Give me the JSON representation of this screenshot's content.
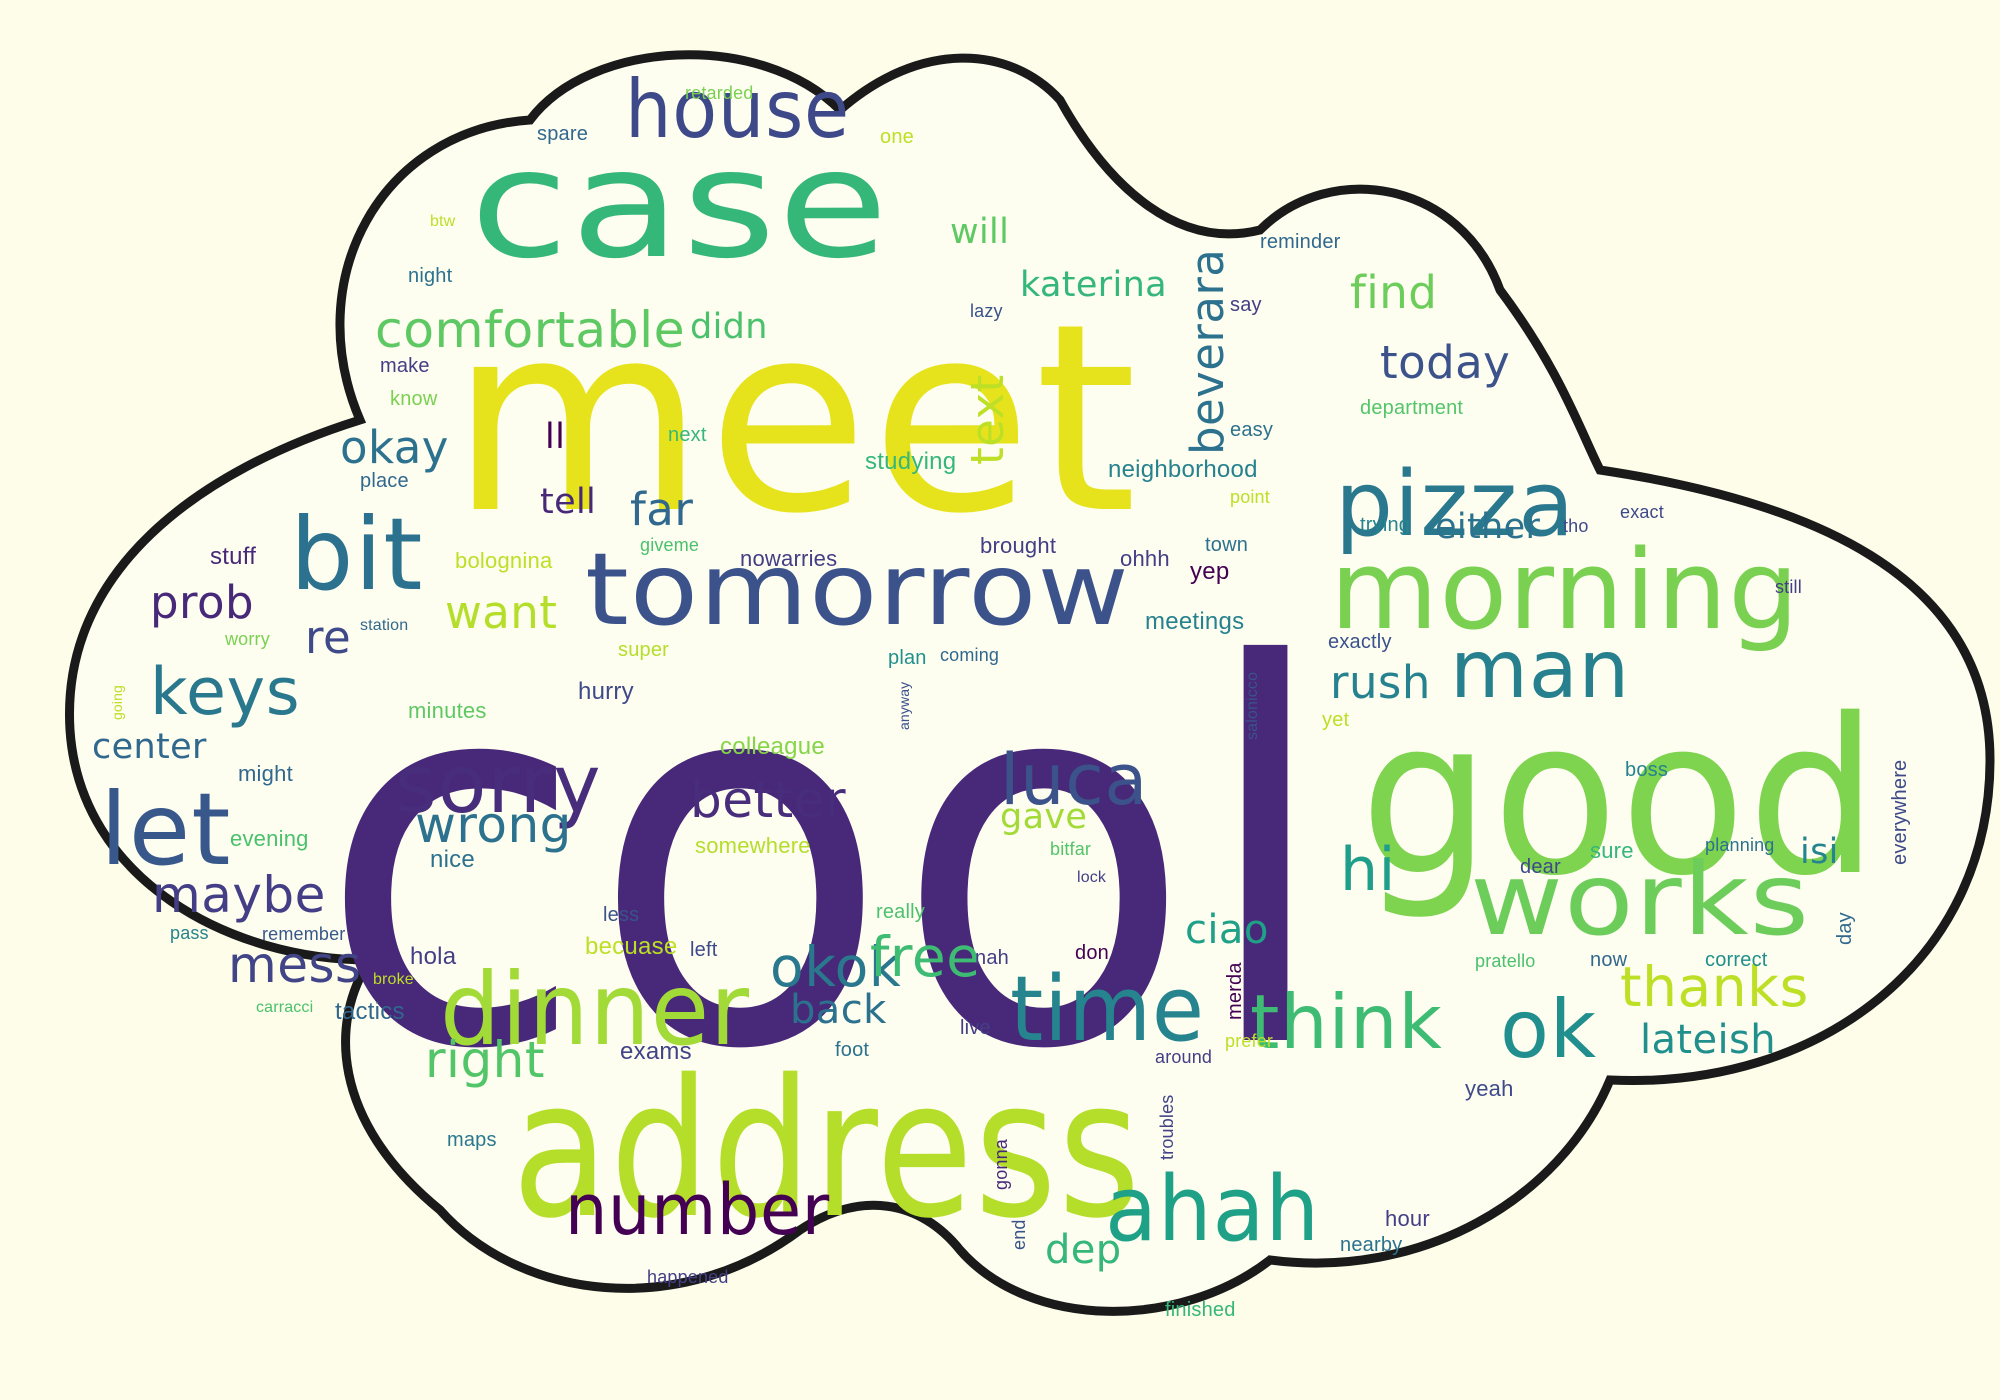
{
  "palette": {
    "background": "#fdfde9",
    "cloud_fill": "#fdfdf0",
    "cloud_border": "#1a1a1a",
    "purple": "#482878",
    "blue": "#3b528b",
    "teal": "#21918c",
    "green": "#35b779",
    "lime": "#84d44b",
    "yellow": "#e6e31c"
  },
  "words": [
    {
      "text": "cool",
      "size": 520,
      "color": "#482878"
    },
    {
      "text": "meet",
      "size": 260,
      "color": "#e6e31c"
    },
    {
      "text": "good",
      "size": 215,
      "color": "#7ed34f"
    },
    {
      "text": "address",
      "size": 190,
      "color": "#b5de2b"
    },
    {
      "text": "case",
      "size": 150,
      "color": "#35b779"
    },
    {
      "text": "morning",
      "size": 110,
      "color": "#7ad151"
    },
    {
      "text": "tomorrow",
      "size": 100,
      "color": "#3b528b"
    },
    {
      "text": "works",
      "size": 100,
      "color": "#6ccd5a"
    },
    {
      "text": "bit",
      "size": 100,
      "color": "#2c728e"
    },
    {
      "text": "dinner",
      "size": 100,
      "color": "#a2da37"
    },
    {
      "text": "let",
      "size": 100,
      "color": "#38588c"
    },
    {
      "text": "ahah",
      "size": 90,
      "color": "#1fa188"
    },
    {
      "text": "time",
      "size": 90,
      "color": "#25848e"
    },
    {
      "text": "pizza",
      "size": 90,
      "color": "#2a788e"
    },
    {
      "text": "house",
      "size": 80,
      "color": "#3e4989"
    },
    {
      "text": "ok",
      "size": 80,
      "color": "#218f8d"
    },
    {
      "text": "man",
      "size": 80,
      "color": "#27808e"
    },
    {
      "text": "sorry",
      "size": 80,
      "color": "#472d7b"
    },
    {
      "text": "think",
      "size": 75,
      "color": "#3fbc73"
    },
    {
      "text": "number",
      "size": 70,
      "color": "#440154"
    },
    {
      "text": "luca",
      "size": 70,
      "color": "#3b528b"
    },
    {
      "text": "keys",
      "size": 65,
      "color": "#2a788e"
    },
    {
      "text": "hi",
      "size": 60,
      "color": "#1f9e89"
    },
    {
      "text": "comfortable",
      "size": 50,
      "color": "#5ec962"
    },
    {
      "text": "okok",
      "size": 55,
      "color": "#2a788e"
    },
    {
      "text": "free",
      "size": 55,
      "color": "#3fbc73"
    },
    {
      "text": "thanks",
      "size": 55,
      "color": "#bddf26"
    },
    {
      "text": "maybe",
      "size": 50,
      "color": "#433e85"
    },
    {
      "text": "mess",
      "size": 50,
      "color": "#414487"
    },
    {
      "text": "better",
      "size": 50,
      "color": "#472d7b"
    },
    {
      "text": "wrong",
      "size": 50,
      "color": "#2c728e"
    },
    {
      "text": "right",
      "size": 50,
      "color": "#52c569"
    },
    {
      "text": "prob",
      "size": 45,
      "color": "#482878"
    },
    {
      "text": "okay",
      "size": 45,
      "color": "#2c728e"
    },
    {
      "text": "far",
      "size": 45,
      "color": "#31688e"
    },
    {
      "text": "want",
      "size": 45,
      "color": "#b5de2b"
    },
    {
      "text": "re",
      "size": 45,
      "color": "#3e4a89"
    },
    {
      "text": "today",
      "size": 45,
      "color": "#3b528b"
    },
    {
      "text": "find",
      "size": 45,
      "color": "#6ccd5a"
    },
    {
      "text": "rush",
      "size": 45,
      "color": "#26828e"
    },
    {
      "text": "back",
      "size": 40,
      "color": "#2c728e"
    },
    {
      "text": "ciao",
      "size": 40,
      "color": "#1fa188"
    },
    {
      "text": "lateish",
      "size": 40,
      "color": "#21908d"
    },
    {
      "text": "dep",
      "size": 40,
      "color": "#35b779"
    },
    {
      "text": "gave",
      "size": 35,
      "color": "#a2da37"
    },
    {
      "text": "katerina",
      "size": 35,
      "color": "#35b779"
    },
    {
      "text": "will",
      "size": 35,
      "color": "#5ec962"
    },
    {
      "text": "didn",
      "size": 35,
      "color": "#4ac16d"
    },
    {
      "text": "either",
      "size": 35,
      "color": "#2c728e"
    },
    {
      "text": "center",
      "size": 35,
      "color": "#31688e"
    },
    {
      "text": "tell",
      "size": 35,
      "color": "#482878"
    },
    {
      "text": "isi",
      "size": 35,
      "color": "#25858e"
    },
    {
      "text": "ll",
      "size": 35,
      "color": "#440154"
    },
    {
      "text": "text",
      "size": 45,
      "color": "#bddf26",
      "vertical": true
    },
    {
      "text": "beverara",
      "size": 45,
      "color": "#2c728e",
      "vertical": true
    },
    {
      "text": "neighborhood",
      "size": 24,
      "color": "#26828e"
    },
    {
      "text": "studying",
      "size": 24,
      "color": "#35b779"
    },
    {
      "text": "nowarries",
      "size": 22,
      "color": "#433e85"
    },
    {
      "text": "bolognina",
      "size": 22,
      "color": "#bddf26"
    },
    {
      "text": "meetings",
      "size": 24,
      "color": "#26828e"
    },
    {
      "text": "yep",
      "size": 24,
      "color": "#440154"
    },
    {
      "text": "stuff",
      "size": 24,
      "color": "#482878"
    },
    {
      "text": "hurry",
      "size": 24,
      "color": "#3e4a89"
    },
    {
      "text": "tactics",
      "size": 24,
      "color": "#31688e"
    },
    {
      "text": "exams",
      "size": 24,
      "color": "#414487"
    },
    {
      "text": "hola",
      "size": 24,
      "color": "#433e85"
    },
    {
      "text": "becuase",
      "size": 24,
      "color": "#bddf26"
    },
    {
      "text": "nice",
      "size": 24,
      "color": "#2c728e"
    },
    {
      "text": "somewhere",
      "size": 22,
      "color": "#b5de2b"
    },
    {
      "text": "colleague",
      "size": 24,
      "color": "#86d549"
    },
    {
      "text": "minutes",
      "size": 22,
      "color": "#5ec962"
    },
    {
      "text": "evening",
      "size": 22,
      "color": "#4ac16d"
    },
    {
      "text": "might",
      "size": 22,
      "color": "#31688e"
    },
    {
      "text": "remember",
      "size": 18,
      "color": "#38588c"
    },
    {
      "text": "pass",
      "size": 18,
      "color": "#25848e"
    },
    {
      "text": "broke",
      "size": 16,
      "color": "#bddf26"
    },
    {
      "text": "carracci",
      "size": 16,
      "color": "#4ac16d"
    },
    {
      "text": "maps",
      "size": 20,
      "color": "#2a788e"
    },
    {
      "text": "foot",
      "size": 20,
      "color": "#2c728e"
    },
    {
      "text": "live",
      "size": 20,
      "color": "#433e85"
    },
    {
      "text": "left",
      "size": 20,
      "color": "#3e4989"
    },
    {
      "text": "less",
      "size": 20,
      "color": "#3b528b"
    },
    {
      "text": "really",
      "size": 20,
      "color": "#4ac16d"
    },
    {
      "text": "nah",
      "size": 20,
      "color": "#433e85"
    },
    {
      "text": "don",
      "size": 20,
      "color": "#440154"
    },
    {
      "text": "lock",
      "size": 16,
      "color": "#433e85"
    },
    {
      "text": "bitfar",
      "size": 18,
      "color": "#52c569"
    },
    {
      "text": "coming",
      "size": 18,
      "color": "#31688e"
    },
    {
      "text": "plan",
      "size": 20,
      "color": "#21908d"
    },
    {
      "text": "super",
      "size": 20,
      "color": "#b5de2b"
    },
    {
      "text": "station",
      "size": 16,
      "color": "#31688e"
    },
    {
      "text": "worry",
      "size": 18,
      "color": "#7ad151"
    },
    {
      "text": "giveme",
      "size": 18,
      "color": "#4ac16d"
    },
    {
      "text": "brought",
      "size": 22,
      "color": "#433e85"
    },
    {
      "text": "ohhh",
      "size": 22,
      "color": "#433e85"
    },
    {
      "text": "town",
      "size": 20,
      "color": "#2c728e"
    },
    {
      "text": "tho",
      "size": 18,
      "color": "#3e4a89"
    },
    {
      "text": "exact",
      "size": 18,
      "color": "#3e4989"
    },
    {
      "text": "trying",
      "size": 20,
      "color": "#25848e"
    },
    {
      "text": "exactly",
      "size": 20,
      "color": "#3b528b"
    },
    {
      "text": "still",
      "size": 18,
      "color": "#433e85"
    },
    {
      "text": "yet",
      "size": 20,
      "color": "#bddf26"
    },
    {
      "text": "boss",
      "size": 20,
      "color": "#26828e"
    },
    {
      "text": "sure",
      "size": 22,
      "color": "#35b779"
    },
    {
      "text": "dear",
      "size": 20,
      "color": "#3e4989"
    },
    {
      "text": "planning",
      "size": 18,
      "color": "#2c728e"
    },
    {
      "text": "pratello",
      "size": 18,
      "color": "#4ac16d"
    },
    {
      "text": "now",
      "size": 20,
      "color": "#31688e"
    },
    {
      "text": "correct",
      "size": 20,
      "color": "#21908d"
    },
    {
      "text": "yeah",
      "size": 22,
      "color": "#3e4a89"
    },
    {
      "text": "hour",
      "size": 22,
      "color": "#433e85"
    },
    {
      "text": "nearby",
      "size": 20,
      "color": "#2c728e"
    },
    {
      "text": "finished",
      "size": 20,
      "color": "#35b779"
    },
    {
      "text": "happened",
      "size": 18,
      "color": "#433e85"
    },
    {
      "text": "around",
      "size": 18,
      "color": "#433e85"
    },
    {
      "text": "prefer",
      "size": 18,
      "color": "#bddf26"
    },
    {
      "text": "point",
      "size": 18,
      "color": "#bddf26"
    },
    {
      "text": "easy",
      "size": 20,
      "color": "#2c728e"
    },
    {
      "text": "department",
      "size": 20,
      "color": "#52c569"
    },
    {
      "text": "reminder",
      "size": 20,
      "color": "#31688e"
    },
    {
      "text": "say",
      "size": 20,
      "color": "#433e85"
    },
    {
      "text": "lazy",
      "size": 18,
      "color": "#3b528b"
    },
    {
      "text": "night",
      "size": 20,
      "color": "#2c728e"
    },
    {
      "text": "btw",
      "size": 16,
      "color": "#bddf26"
    },
    {
      "text": "spare",
      "size": 20,
      "color": "#31688e"
    },
    {
      "text": "retarded",
      "size": 18,
      "color": "#7ad151"
    },
    {
      "text": "one",
      "size": 20,
      "color": "#bddf26"
    },
    {
      "text": "make",
      "size": 20,
      "color": "#433e85"
    },
    {
      "text": "know",
      "size": 20,
      "color": "#7ad151"
    },
    {
      "text": "next",
      "size": 20,
      "color": "#35b779"
    },
    {
      "text": "place",
      "size": 20,
      "color": "#31688e"
    },
    {
      "text": "salonicco",
      "size": 16,
      "color": "#3b528b",
      "vertical": true
    },
    {
      "text": "everywhere",
      "size": 20,
      "color": "#3e4989",
      "vertical": true
    },
    {
      "text": "day",
      "size": 20,
      "color": "#31688e",
      "vertical": true
    },
    {
      "text": "merda",
      "size": 20,
      "color": "#440154",
      "vertical": true
    },
    {
      "text": "troubles",
      "size": 18,
      "color": "#414487",
      "vertical": true
    },
    {
      "text": "gonna",
      "size": 18,
      "color": "#482878",
      "vertical": true
    },
    {
      "text": "end",
      "size": 18,
      "color": "#3b528b",
      "vertical": true
    },
    {
      "text": "anyway",
      "size": 14,
      "color": "#3b528b",
      "vertical": true
    },
    {
      "text": "going",
      "size": 14,
      "color": "#bddf26",
      "vertical": true
    }
  ]
}
